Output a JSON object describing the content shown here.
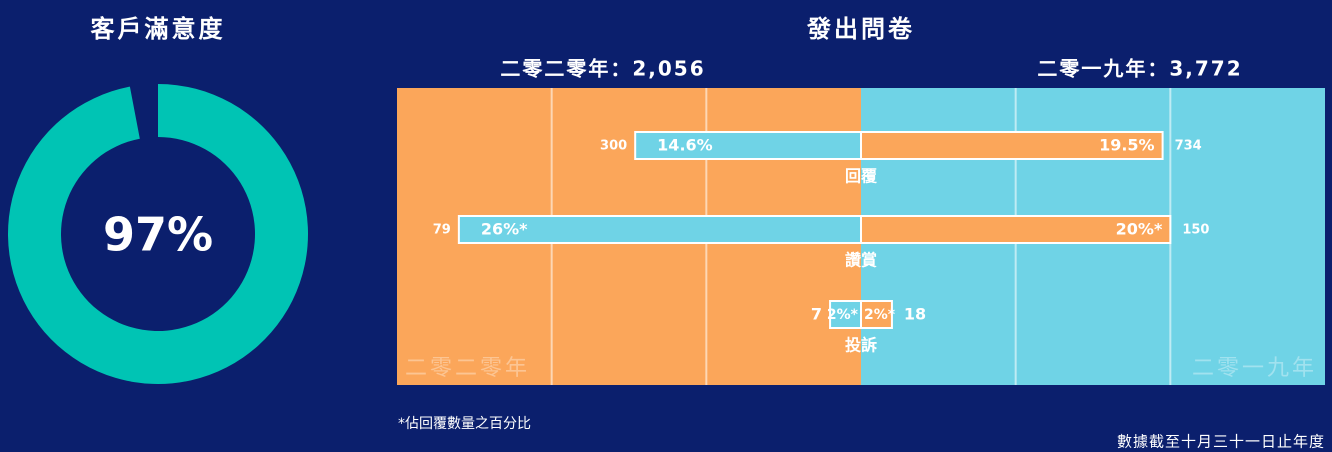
{
  "chart_data": [
    {
      "type": "donut",
      "title": "客戶滿意度",
      "value": 97,
      "value_label": "97%",
      "ylim": [
        0,
        100
      ],
      "color": "#00c4b4"
    },
    {
      "type": "butterfly",
      "title": "發出問卷",
      "categories": [
        "回覆",
        "讚賞",
        "投訴"
      ],
      "xlim": [
        0,
        30
      ],
      "xticks": [
        10,
        20
      ],
      "grid": true,
      "series": [
        {
          "name": "二零二零年",
          "heading": "二零二零年：2,056",
          "side": "left",
          "color": "#6fd3e6",
          "background": "#fba65a",
          "values": [
            14.6,
            26,
            2
          ],
          "value_labels": [
            "14.6%",
            "26%*",
            "2%*"
          ],
          "counts": [
            300,
            79,
            7
          ]
        },
        {
          "name": "二零一九年",
          "heading": "二零一九年：3,772",
          "side": "right",
          "color": "#fba65a",
          "background": "#6fd3e6",
          "values": [
            19.5,
            20,
            2
          ],
          "value_labels": [
            "19.5%",
            "20%*",
            "2%*"
          ],
          "counts": [
            734,
            150,
            18
          ]
        }
      ],
      "footnote": "*佔回覆數量之百分比",
      "source": "數據截至十月三十一日止年度"
    }
  ]
}
